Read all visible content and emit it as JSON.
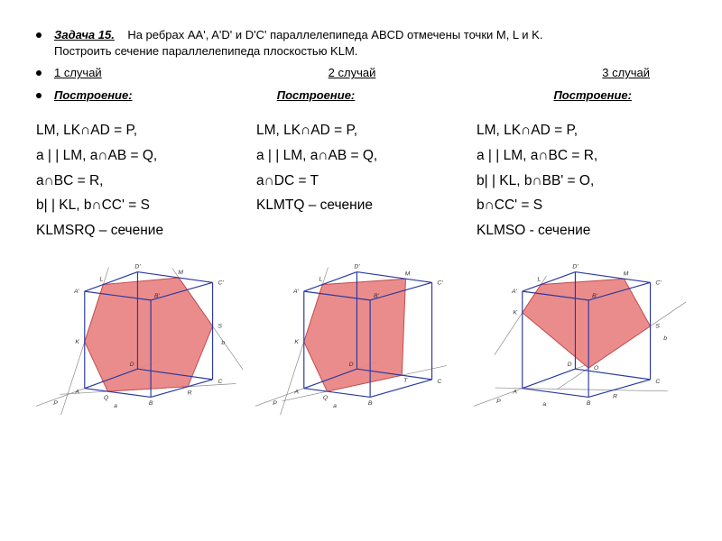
{
  "problem": {
    "title_label": "Задача 15.",
    "statement_part1": "На ребрах AA', A'D' и D'C' параллелепипеда ABCD отмечены точки M, L и K.",
    "statement_part2": "Построить сечение параллелепипеда плоскостью KLM."
  },
  "cases": {
    "case1": "1 случай",
    "case2": "2 случай",
    "case3": "3 случай"
  },
  "construction_label": "Построение:",
  "solutions": {
    "sol1": {
      "l1": "LM, LK∩AD = P,",
      "l2": "a | | LM, a∩AB = Q,",
      "l3": "a∩BC = R,",
      "l4": "b| | KL, b∩CC' = S",
      "l5": "KLMSRQ – сечение"
    },
    "sol2": {
      "l1": "LM, LK∩AD = P,",
      "l2": "a | | LM, a∩AB = Q,",
      "l3": "a∩DC = T",
      "l4": "KLMTQ – сечение"
    },
    "sol3": {
      "l1": "LM, LK∩AD = P,",
      "l2": "a | | LM,  a∩BC = R,",
      "l3": "b| | KL, b∩BB' = O,",
      "l4": "b∩CC' = S",
      "l5": "KLMSO - сечение"
    }
  },
  "diagram": {
    "edge_color": "#2a3aa0",
    "section_fill": "#e98282",
    "section_stroke": "#c14a4a",
    "guide_color": "#888888",
    "label_color": "#333333",
    "label_fontsize": 7,
    "stroke_width": 1.2,
    "labels": {
      "A": "A",
      "B": "B",
      "C": "C",
      "D": "D",
      "Ap": "A'",
      "Bp": "B'",
      "Cp": "C'",
      "Dp": "D'",
      "K": "K",
      "L": "L",
      "M": "M",
      "P": "P",
      "Q": "Q",
      "R": "R",
      "S": "S",
      "T": "T",
      "O": "O",
      "a": "a",
      "b": "b"
    }
  }
}
